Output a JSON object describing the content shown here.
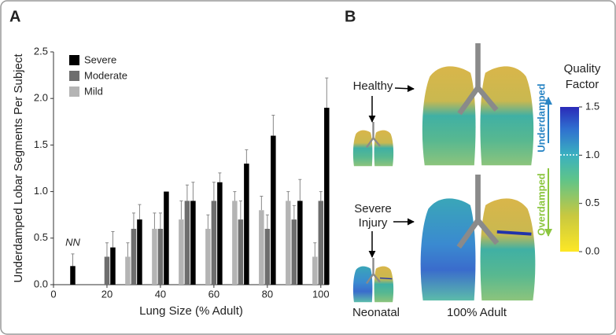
{
  "chart_data": {
    "type": "bar",
    "panel_label": "A",
    "y_label": "Underdamped Lobar Segments Per Subject",
    "x_label": "Lung Size (% Adult)",
    "x": [
      5,
      20,
      30,
      40,
      50,
      60,
      70,
      80,
      90,
      100
    ],
    "series": [
      {
        "name": "Severe",
        "color": "#000000",
        "values": [
          0.2,
          0.4,
          0.7,
          1.0,
          0.9,
          1.1,
          1.3,
          1.6,
          0.9,
          1.9
        ],
        "errors": [
          0.13,
          0.17,
          0.16,
          null,
          0.2,
          0.1,
          0.15,
          0.22,
          0.23,
          0.32
        ]
      },
      {
        "name": "Moderate",
        "color": "#6e6e6e",
        "values": [
          null,
          0.3,
          0.6,
          0.6,
          0.9,
          0.9,
          0.7,
          0.6,
          0.7,
          0.9
        ],
        "errors": [
          null,
          0.15,
          0.17,
          0.17,
          0.17,
          0.2,
          0.2,
          0.15,
          0.15,
          0.1
        ]
      },
      {
        "name": "Mild",
        "color": "#b4b4b4",
        "values": [
          null,
          null,
          0.3,
          0.6,
          0.7,
          0.6,
          0.9,
          0.8,
          0.9,
          0.3
        ],
        "errors": [
          null,
          null,
          0.15,
          0.17,
          0.2,
          0.15,
          0.1,
          0.15,
          0.1,
          0.15
        ]
      }
    ],
    "annotation": "NN",
    "xlim": [
      0,
      103
    ],
    "xticks": [
      0,
      20,
      40,
      60,
      80,
      100
    ],
    "ylim": [
      0,
      2.5
    ],
    "yticks": [
      {
        "value": 0,
        "label": "0.0"
      },
      0.5,
      {
        "value": 1,
        "label": "1.0"
      },
      1.5,
      {
        "value": 2,
        "label": "2.0"
      },
      2.5
    ],
    "legend": "upper left"
  },
  "panel_b": {
    "label": "B",
    "healthy": "Healthy",
    "severe_injury": [
      "Severe",
      "Injury"
    ],
    "neonatal": "Neonatal",
    "adult": "100% Adult",
    "colorbar": {
      "title": [
        "Quality",
        "Factor"
      ],
      "lim": [
        0,
        1.5
      ],
      "ticks": [
        1.5,
        {
          "value": 1,
          "label": "1.0"
        },
        0.5,
        {
          "value": 0,
          "label": "0.0"
        }
      ],
      "underdamped": "Underdamped",
      "overdamped": "Overdamped"
    }
  }
}
